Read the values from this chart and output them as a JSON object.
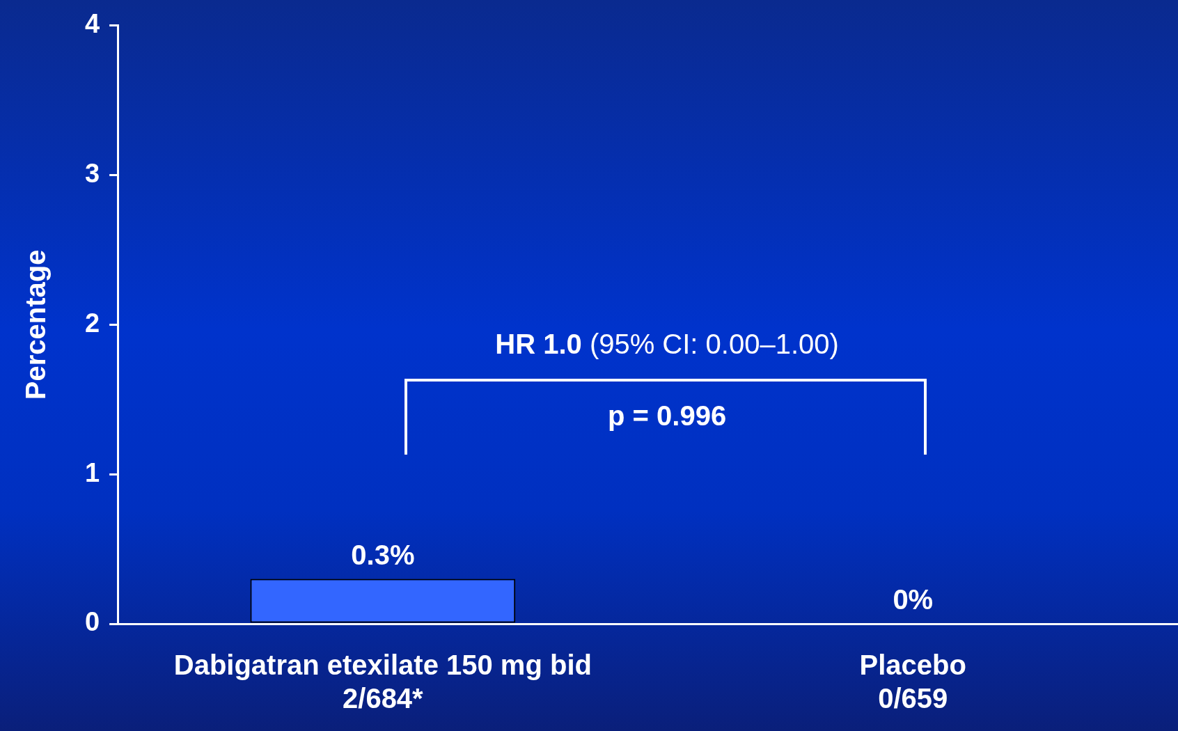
{
  "chart_data": {
    "type": "bar",
    "ylabel": "Percentage",
    "categories": [
      "Dabigatran etexilate 150 mg bid\n2/684*",
      "Placebo\n0/659"
    ],
    "values": [
      0.3,
      0
    ],
    "value_labels": [
      "0.3%",
      "0%"
    ],
    "color": "#3366ff",
    "ylim": [
      0,
      4
    ],
    "yticks": [
      0,
      1,
      2,
      3,
      4
    ],
    "grid": false,
    "legend": false,
    "annotations": [
      "HR 1.0 (95% CI: 0.00–1.00)",
      "p = 0.996"
    ]
  }
}
